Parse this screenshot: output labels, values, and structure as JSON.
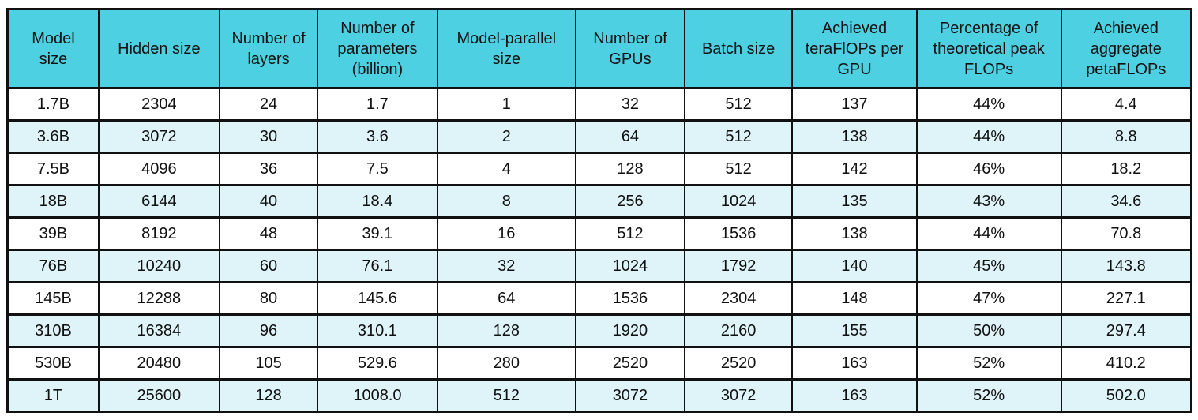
{
  "chart_data": {
    "type": "table",
    "columns": [
      "Model size",
      "Hidden size",
      "Number of layers",
      "Number of parameters (billion)",
      "Model-parallel size",
      "Number of GPUs",
      "Batch size",
      "Achieved teraFlOPs per GPU",
      "Percentage of theoretical peak FLOPs",
      "Achieved aggregate petaFLOPs"
    ],
    "rows": [
      [
        "1.7B",
        "2304",
        "24",
        "1.7",
        "1",
        "32",
        "512",
        "137",
        "44%",
        "4.4"
      ],
      [
        "3.6B",
        "3072",
        "30",
        "3.6",
        "2",
        "64",
        "512",
        "138",
        "44%",
        "8.8"
      ],
      [
        "7.5B",
        "4096",
        "36",
        "7.5",
        "4",
        "128",
        "512",
        "142",
        "46%",
        "18.2"
      ],
      [
        "18B",
        "6144",
        "40",
        "18.4",
        "8",
        "256",
        "1024",
        "135",
        "43%",
        "34.6"
      ],
      [
        "39B",
        "8192",
        "48",
        "39.1",
        "16",
        "512",
        "1536",
        "138",
        "44%",
        "70.8"
      ],
      [
        "76B",
        "10240",
        "60",
        "76.1",
        "32",
        "1024",
        "1792",
        "140",
        "45%",
        "143.8"
      ],
      [
        "145B",
        "12288",
        "80",
        "145.6",
        "64",
        "1536",
        "2304",
        "148",
        "47%",
        "227.1"
      ],
      [
        "310B",
        "16384",
        "96",
        "310.1",
        "128",
        "1920",
        "2160",
        "155",
        "50%",
        "297.4"
      ],
      [
        "530B",
        "20480",
        "105",
        "529.6",
        "280",
        "2520",
        "2520",
        "163",
        "52%",
        "410.2"
      ],
      [
        "1T",
        "25600",
        "128",
        "1008.0",
        "512",
        "3072",
        "3072",
        "163",
        "52%",
        "502.0"
      ]
    ],
    "colors": {
      "header_bg": "#4DD0E1",
      "row_even_bg": "#DFF4F8",
      "row_odd_bg": "#FFFFFF",
      "border": "#111111",
      "text": "#111111"
    }
  }
}
